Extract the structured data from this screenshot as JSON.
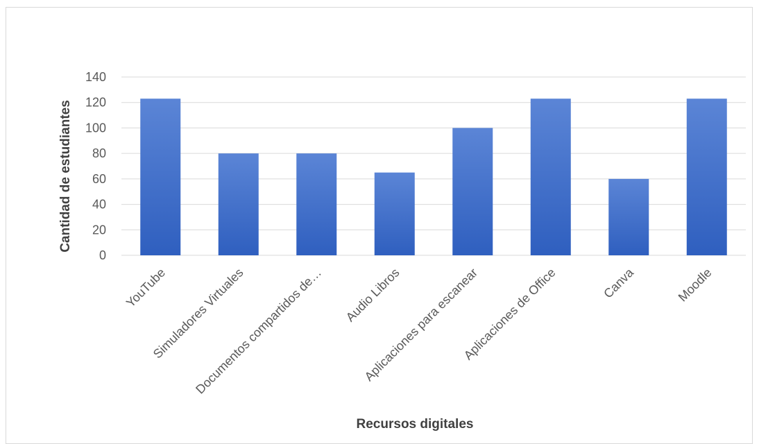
{
  "chart_data": {
    "type": "bar",
    "title": "",
    "xlabel": "Recursos digitales",
    "ylabel": "Cantidad de estudiantes",
    "categories": [
      "YouTube",
      "Simuladores Virtuales",
      "Documentos compartidos de…",
      "Audio Libros",
      "Aplicaciones para escanear",
      "Aplicaciones de Office",
      "Canva",
      "Moodle"
    ],
    "values": [
      123,
      80,
      80,
      65,
      100,
      123,
      60,
      123
    ],
    "ylim": [
      0,
      140
    ],
    "yticks": [
      0,
      20,
      40,
      60,
      80,
      100,
      120,
      140
    ],
    "grid": true,
    "legend": "none",
    "colors": {
      "bar_top": "#5b85d6",
      "bar_bottom": "#2f5fbf",
      "grid": "#d9d9d9",
      "text": "#595959"
    }
  }
}
